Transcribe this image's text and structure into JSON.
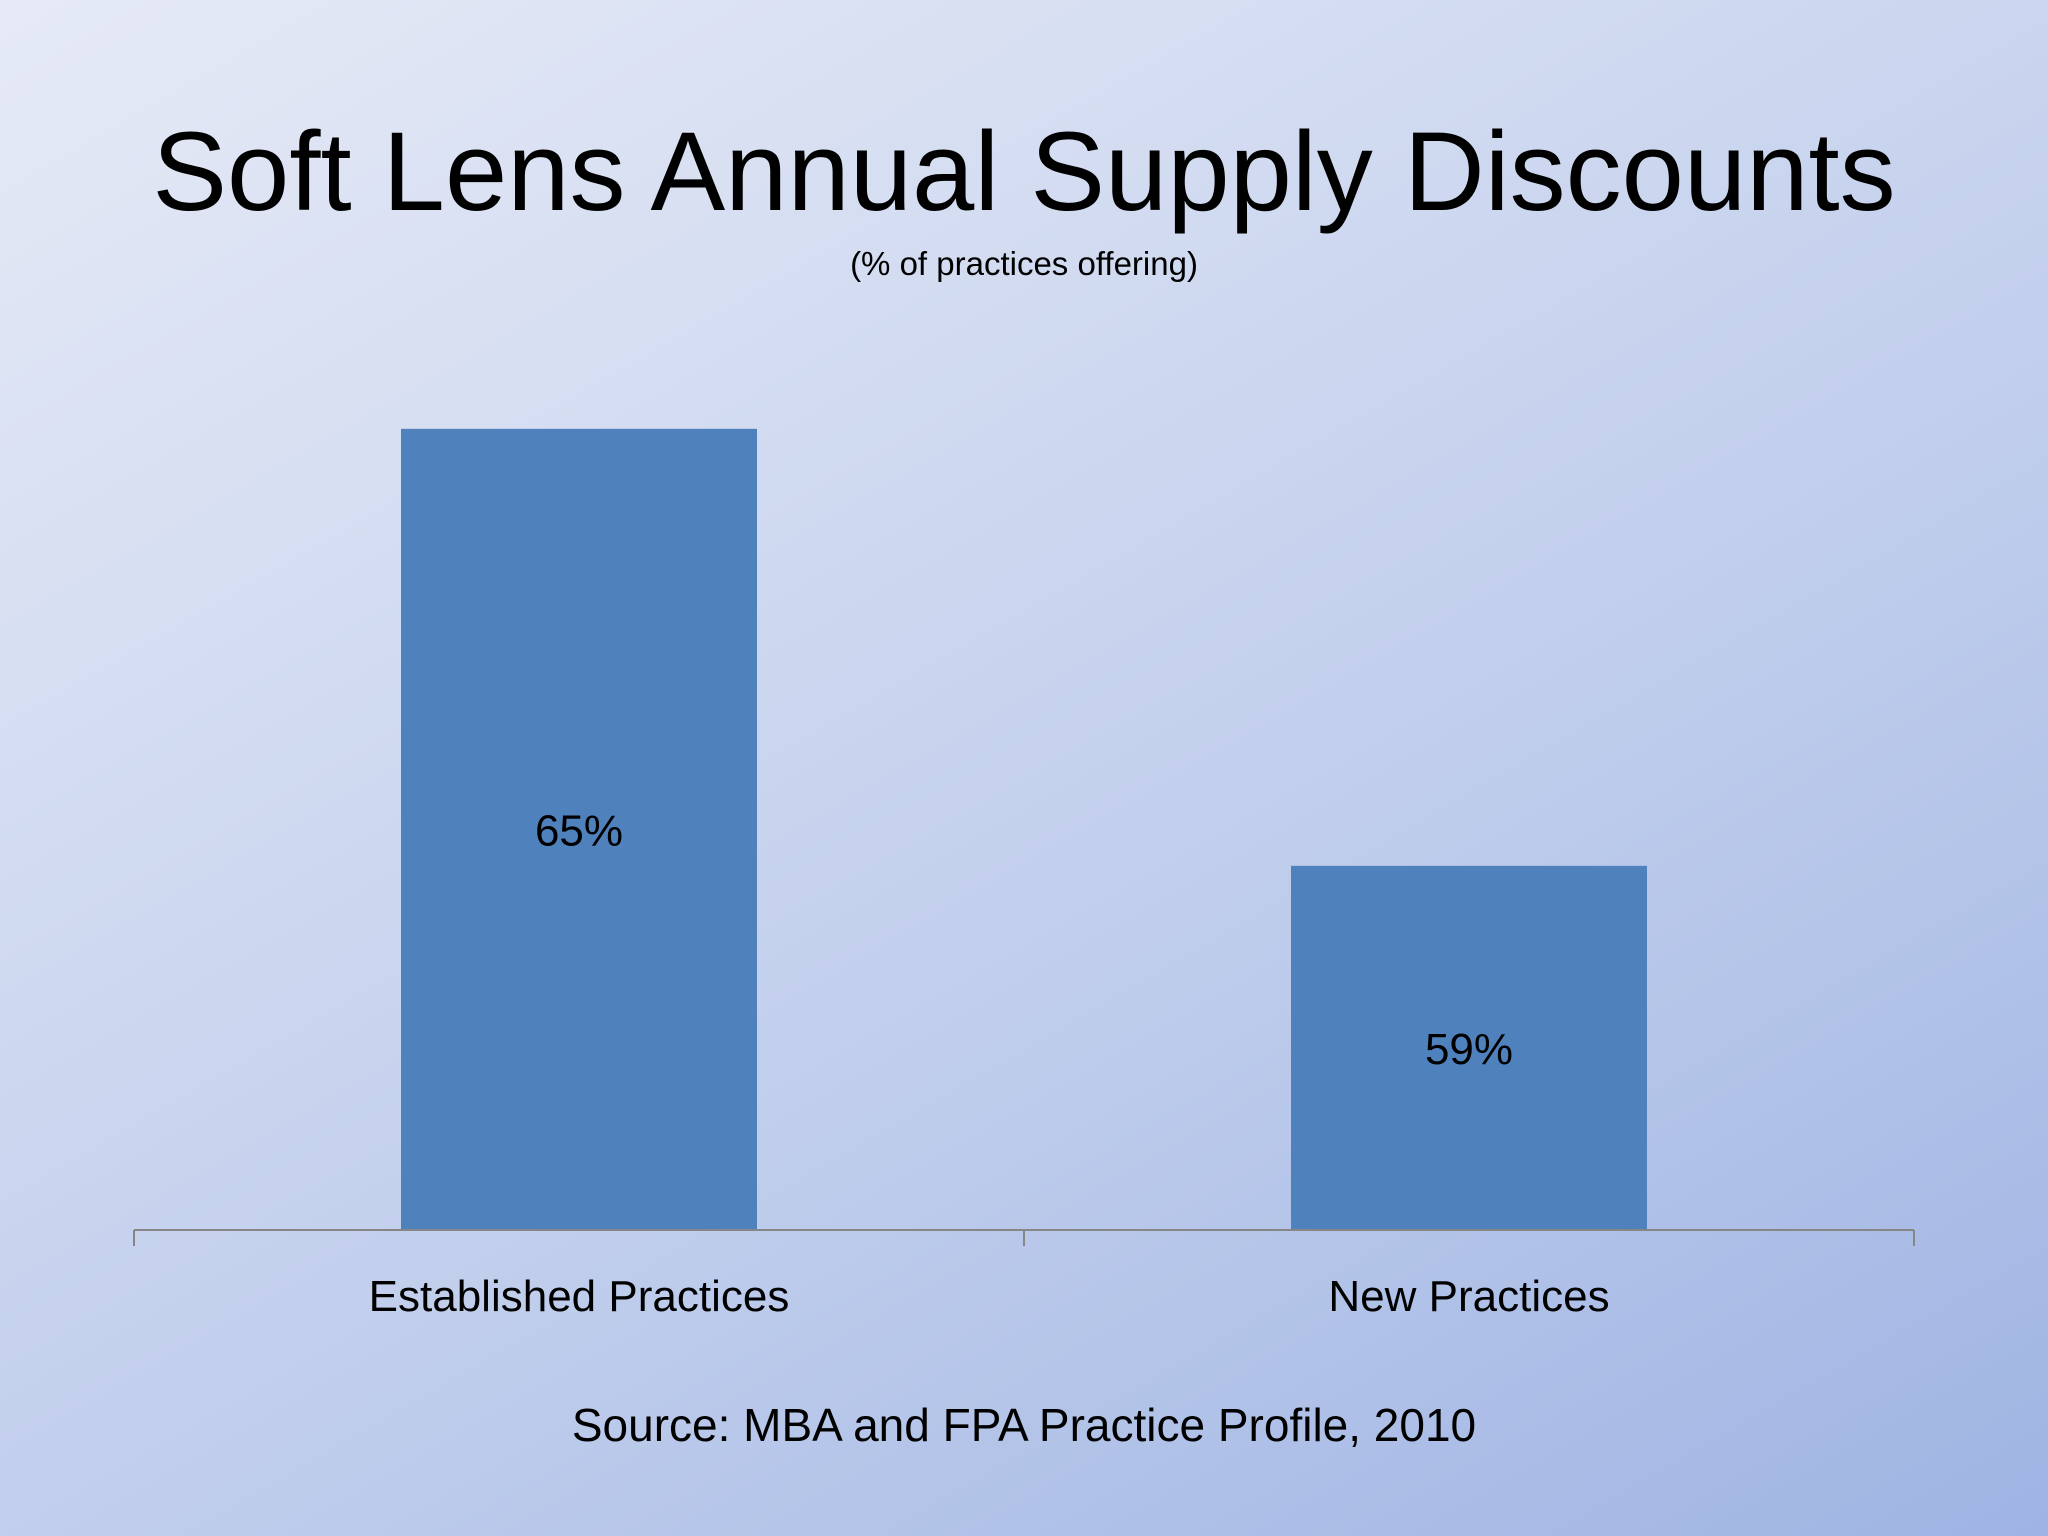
{
  "title": "Soft Lens Annual Supply Discounts",
  "subtitle": "(% of practices offering)",
  "source": "Source: MBA and FPA Practice Profile, 2010",
  "colors": {
    "bar": "#4f81bd",
    "axis": "#868686"
  },
  "chart_data": {
    "type": "bar",
    "categories": [
      "Established Practices",
      "New Practices"
    ],
    "values": [
      65,
      59
    ],
    "value_labels": [
      "65%",
      "59%"
    ],
    "title": "Soft Lens Annual Supply Discounts",
    "subtitle": "(% of practices offering)",
    "xlabel": "",
    "ylabel": "",
    "ylim": [
      54,
      66
    ],
    "grid": false,
    "legend": "none"
  }
}
